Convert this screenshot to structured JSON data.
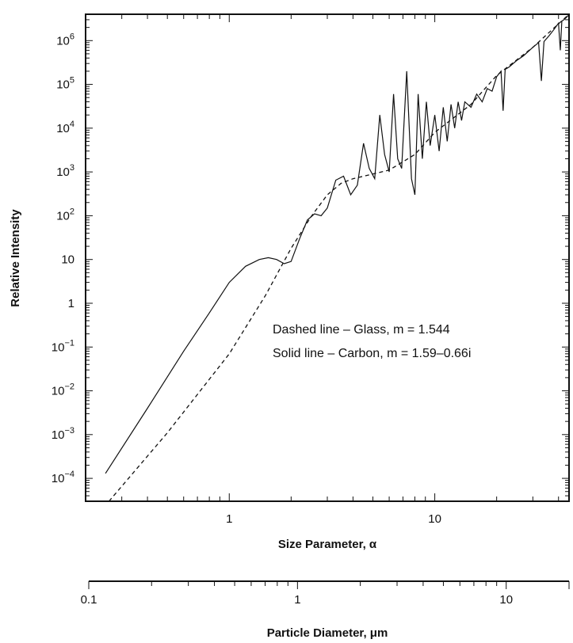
{
  "chart_data": {
    "type": "line",
    "xlabel": "Size Parameter, α",
    "ylabel": "Relative Intensity",
    "x_scale": "log",
    "y_scale": "log",
    "xlim": [
      0.2,
      45
    ],
    "ylim": [
      3e-05,
      4000000
    ],
    "grid": false,
    "x_ticks": [
      {
        "value": 1,
        "label": "1"
      },
      {
        "value": 10,
        "label": "10"
      }
    ],
    "y_ticks": [
      {
        "value": 0.0001,
        "base": "10",
        "exp": "−4"
      },
      {
        "value": 0.001,
        "base": "10",
        "exp": "−3"
      },
      {
        "value": 0.01,
        "base": "10",
        "exp": "−2"
      },
      {
        "value": 0.1,
        "base": "10",
        "exp": "−1"
      },
      {
        "value": 1,
        "base": "1",
        "exp": ""
      },
      {
        "value": 10,
        "base": "10",
        "exp": ""
      },
      {
        "value": 100,
        "base": "10",
        "exp": "2"
      },
      {
        "value": 1000,
        "base": "10",
        "exp": "3"
      },
      {
        "value": 10000,
        "base": "10",
        "exp": "4"
      },
      {
        "value": 100000,
        "base": "10",
        "exp": "5"
      },
      {
        "value": 1000000,
        "base": "10",
        "exp": "6"
      }
    ],
    "annotations": [
      "Dashed line – Glass, m = 1.544",
      "Solid line – Carbon, m = 1.59–0.66i"
    ],
    "series": [
      {
        "style": "dashed",
        "x": [
          0.26,
          0.5,
          1.0,
          1.5,
          2.0,
          2.5,
          3.0,
          3.5,
          4.0,
          5.0,
          6.0,
          8.0,
          10.0,
          15.0,
          20.0,
          30.0,
          45.0
        ],
        "y": [
          3e-05,
          0.0011,
          0.07,
          1.5,
          18,
          95,
          300,
          550,
          700,
          900,
          1100,
          2500,
          8000,
          35000,
          160000,
          700000,
          4000000
        ]
      },
      {
        "style": "solid",
        "x": [
          0.25,
          0.4,
          0.6,
          0.8,
          1.0,
          1.2,
          1.4,
          1.55,
          1.7,
          1.85,
          2.0,
          2.2,
          2.4,
          2.6,
          2.8,
          3.0,
          3.3,
          3.6,
          3.9,
          4.2,
          4.5,
          4.8,
          5.1,
          5.4,
          5.7,
          6.0,
          6.3,
          6.6,
          6.9,
          7.3,
          7.7,
          8.0,
          8.3,
          8.7,
          9.1,
          9.5,
          10.0,
          10.5,
          11.0,
          11.5,
          12.0,
          12.5,
          13.0,
          13.5,
          14.0,
          15.0,
          16.0,
          17.0,
          18.0,
          19.0,
          20.0,
          21.0,
          21.5,
          22.0,
          23.0,
          25.0,
          27.0,
          30.0,
          32.0,
          33.0,
          34.0,
          36.0,
          38.0,
          40.0,
          40.8,
          41.5,
          42.5,
          44.0,
          45.0
        ],
        "y": [
          0.00013,
          0.004,
          0.08,
          0.6,
          3,
          7,
          10,
          11,
          10,
          8,
          9,
          30,
          80,
          110,
          100,
          150,
          650,
          800,
          300,
          500,
          4500,
          1200,
          700,
          20000,
          2500,
          1000,
          60000,
          2000,
          1200,
          200000,
          700,
          300,
          60000,
          2000,
          40000,
          4000,
          20000,
          3000,
          30000,
          5000,
          35000,
          10000,
          40000,
          15000,
          40000,
          30000,
          60000,
          40000,
          80000,
          70000,
          150000,
          200000,
          25000,
          220000,
          250000,
          350000,
          450000,
          700000,
          900000,
          120000,
          950000,
          1300000,
          1800000,
          2500000,
          600000,
          2800000,
          3000000,
          3500000,
          3900000
        ]
      }
    ],
    "secondary_x_axis": {
      "label": "Particle Diameter, μm",
      "scale": "log",
      "xlim": [
        0.1,
        20
      ],
      "ticks": [
        {
          "value": 0.1,
          "label": "0.1"
        },
        {
          "value": 1,
          "label": "1"
        },
        {
          "value": 10,
          "label": "10"
        }
      ]
    }
  }
}
